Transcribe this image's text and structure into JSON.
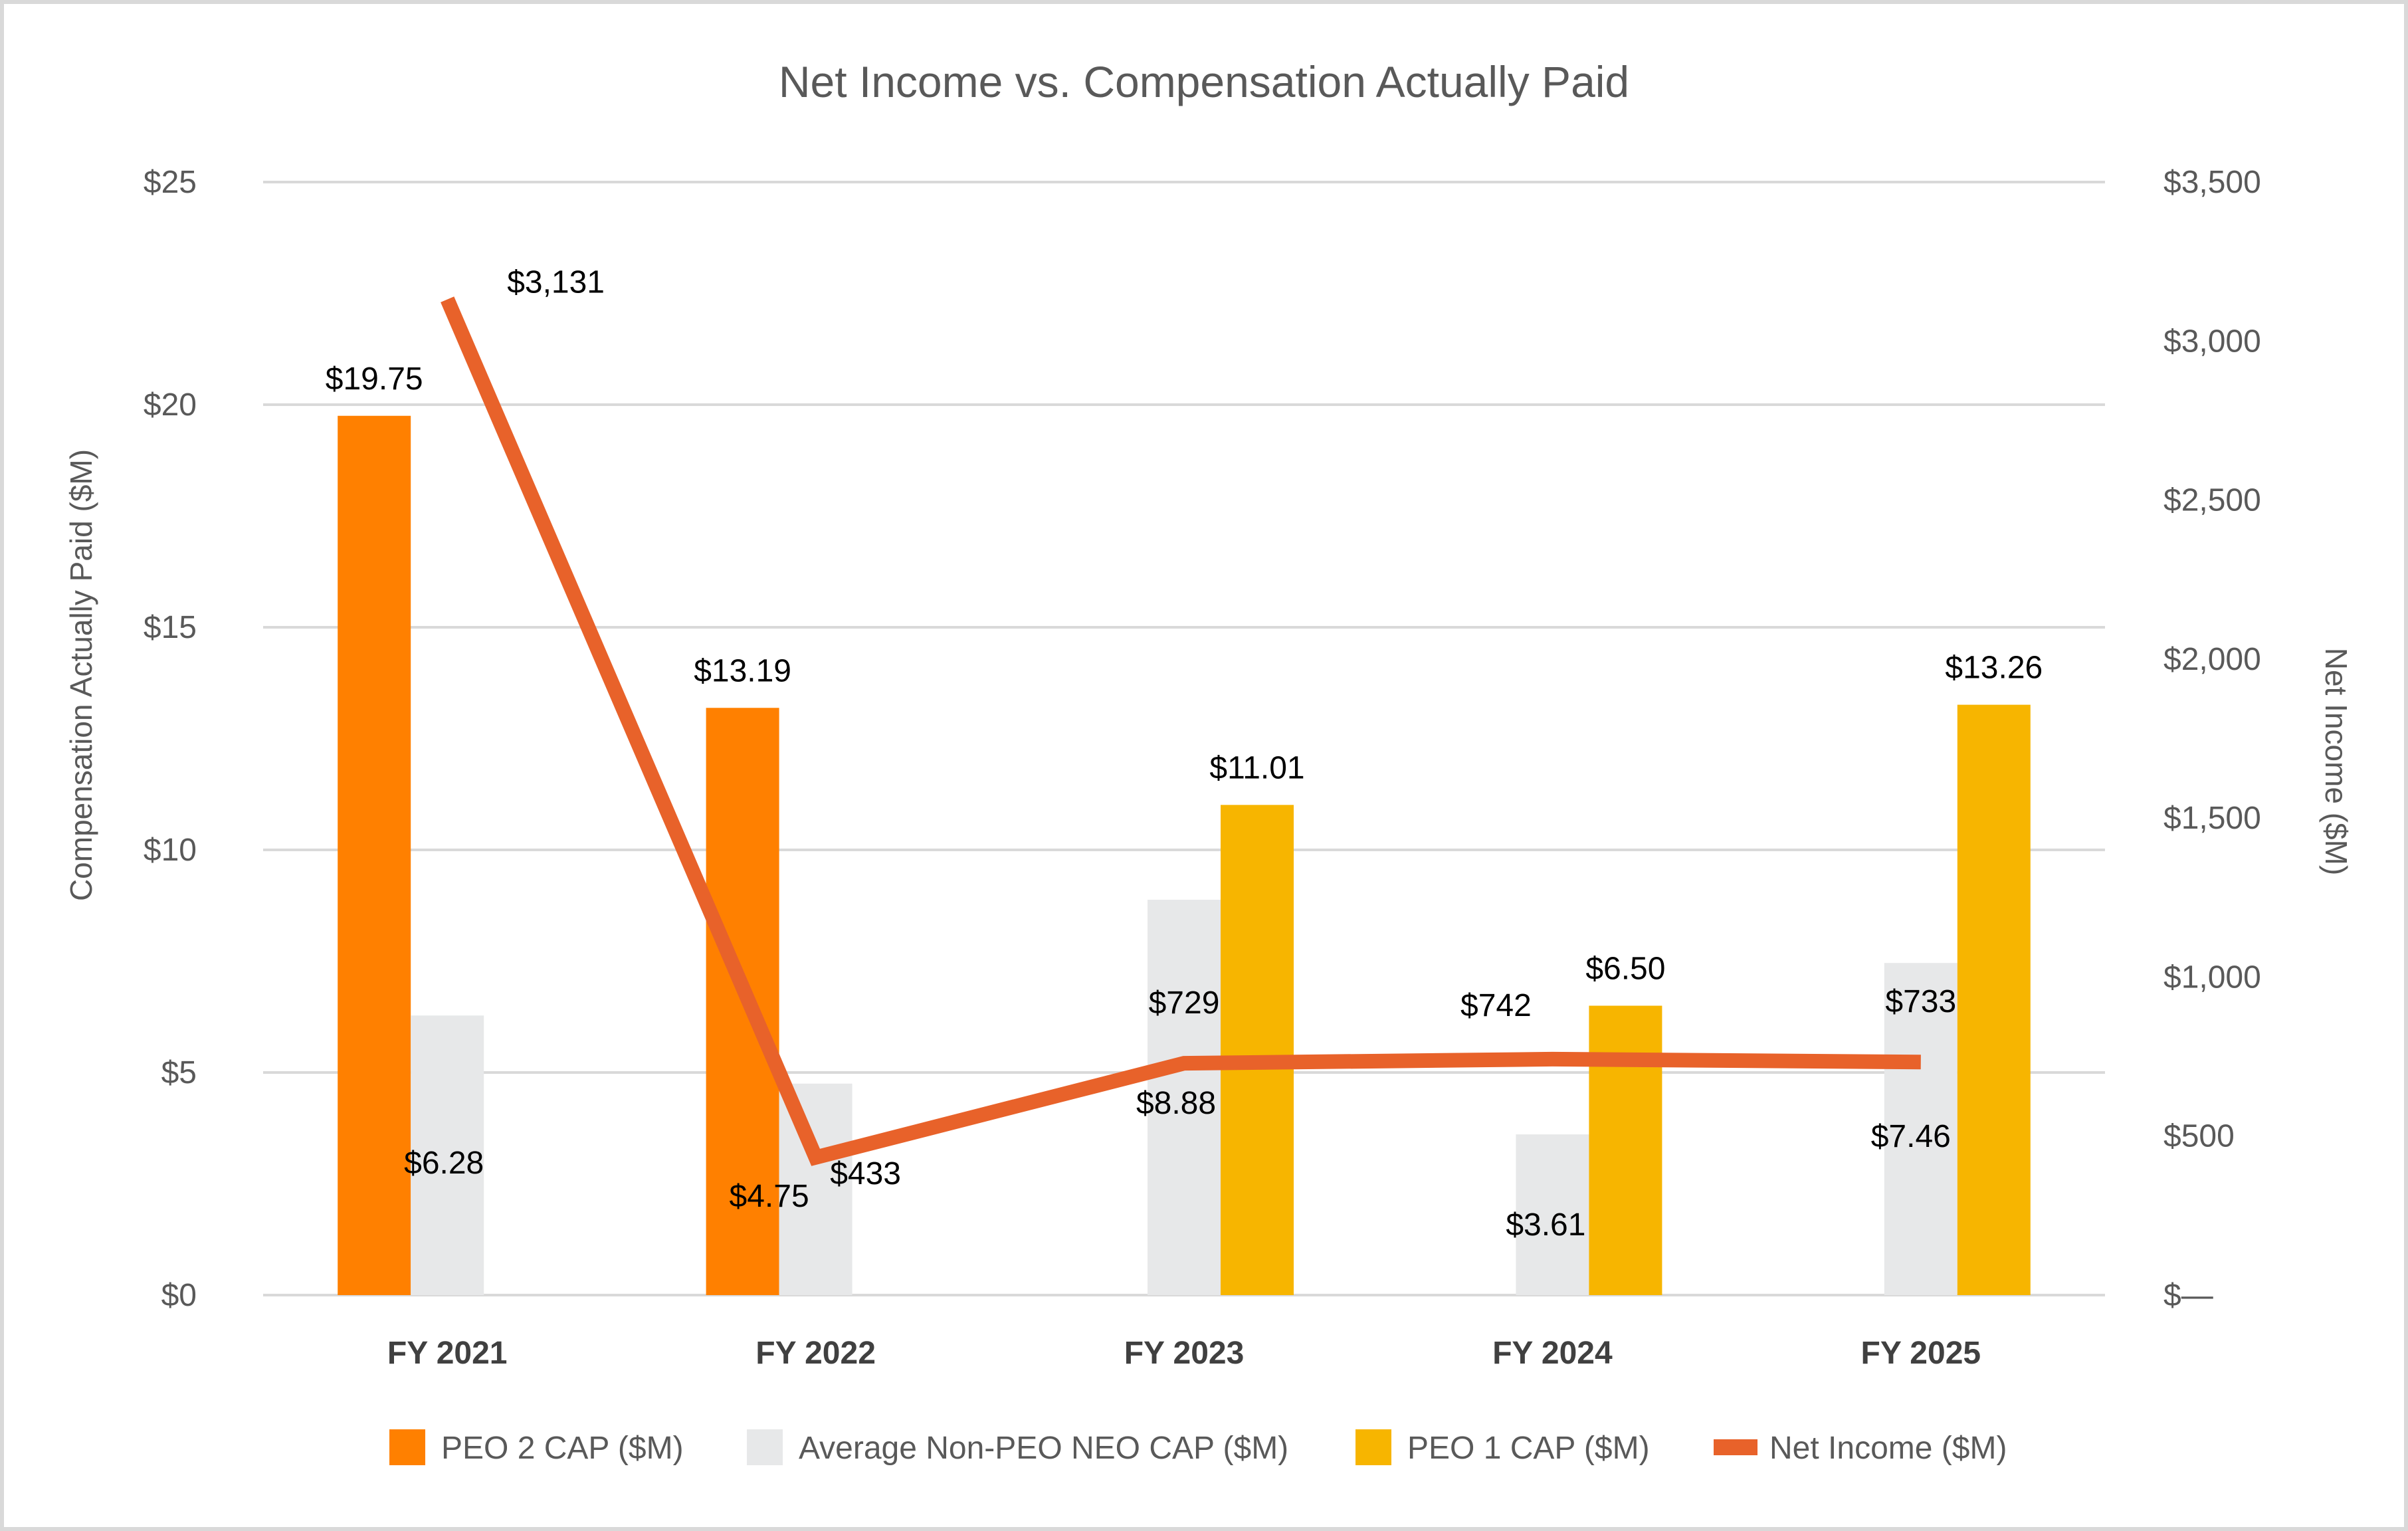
{
  "chart_data": {
    "type": "bar",
    "title": "Net Income vs. Compensation Actually Paid",
    "ylabel": "Compensation Actually Paid ($M)",
    "y2label": "Net Income ($M)",
    "categories": [
      "FY 2021",
      "FY 2022",
      "FY 2023",
      "FY 2024",
      "FY 2025"
    ],
    "ylim": [
      0,
      25
    ],
    "y2lim": [
      0,
      3500
    ],
    "yticks": [
      "$0",
      "$5",
      "$10",
      "$15",
      "$20",
      "$25"
    ],
    "y2ticks": [
      "$—",
      "$500",
      "$1,000",
      "$1,500",
      "$2,000",
      "$2,500",
      "$3,000",
      "$3,500"
    ],
    "grid": true,
    "legend_position": "bottom",
    "series": [
      {
        "name": "PEO 2 CAP ($M)",
        "type": "bar",
        "axis": "left",
        "color": "#ff8000",
        "values": [
          19.75,
          13.19,
          null,
          null,
          null
        ],
        "labels": [
          "$19.75",
          "$13.19",
          "",
          "",
          ""
        ]
      },
      {
        "name": "Average Non-PEO NEO CAP ($M)",
        "type": "bar",
        "axis": "left",
        "color": "#e7e8e9",
        "values": [
          6.28,
          4.75,
          8.88,
          3.61,
          7.46
        ],
        "labels": [
          "$6.28",
          "$4.75",
          "$8.88",
          "$3.61",
          "$7.46"
        ]
      },
      {
        "name": "PEO 1 CAP ($M)",
        "type": "bar",
        "axis": "left",
        "color": "#f7b500",
        "values": [
          null,
          null,
          11.01,
          6.5,
          13.26
        ],
        "labels": [
          "",
          "",
          "$11.01",
          "$6.50",
          "$13.26"
        ]
      },
      {
        "name": "Net Income ($M)",
        "type": "line",
        "axis": "right",
        "color": "#e8622a",
        "values": [
          3131,
          433,
          729,
          742,
          733
        ],
        "labels": [
          "$3,131",
          "$433",
          "$729",
          "$742",
          "$733"
        ]
      }
    ]
  }
}
